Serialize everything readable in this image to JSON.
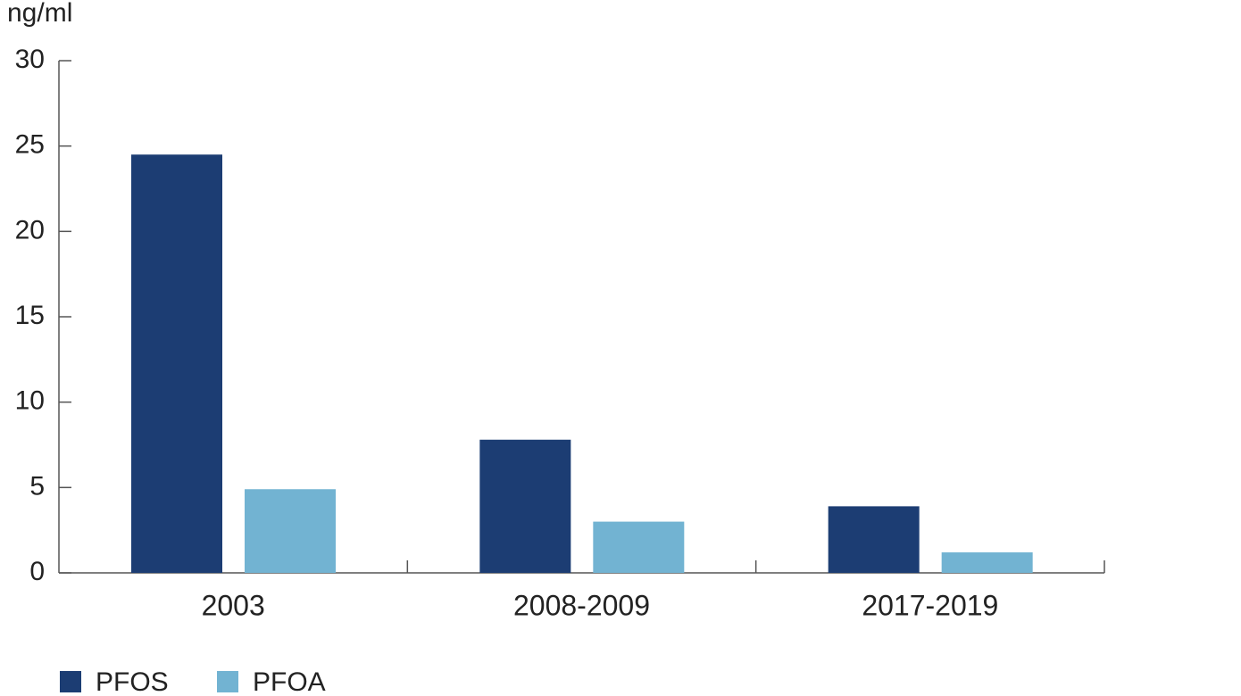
{
  "chart_data": {
    "type": "bar",
    "y_label": "ng/ml",
    "categories": [
      "2003",
      "2008-2009",
      "2017-2019"
    ],
    "series": [
      {
        "name": "PFOS",
        "color": "#1c3d73",
        "values": [
          24.5,
          7.8,
          3.9
        ]
      },
      {
        "name": "PFOA",
        "color": "#72b3d2",
        "values": [
          4.9,
          3.0,
          1.2
        ]
      }
    ],
    "ylim": [
      0,
      30
    ],
    "yticks": [
      0,
      5,
      10,
      15,
      20,
      25,
      30
    ],
    "grid": false,
    "legend": "bottom-left"
  }
}
